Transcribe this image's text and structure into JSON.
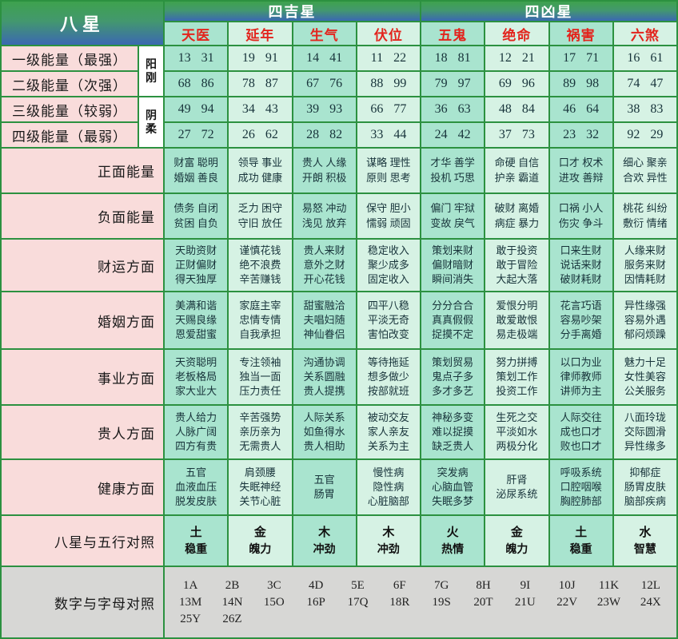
{
  "header": {
    "left_title": "八星",
    "good_group": "四吉星",
    "bad_group": "四凶星",
    "stars": [
      "天医",
      "延年",
      "生气",
      "伏位",
      "五鬼",
      "绝命",
      "祸害",
      "六煞"
    ]
  },
  "yin_yang": [
    "阳刚",
    "阴柔"
  ],
  "energy_rows": [
    {
      "label": "一级能量（最强）",
      "values": [
        "13 31",
        "19 91",
        "14 41",
        "11 22",
        "18 81",
        "12 21",
        "17 71",
        "16 61"
      ]
    },
    {
      "label": "二级能量（次强）",
      "values": [
        "68 86",
        "78 87",
        "67 76",
        "88 99",
        "79 97",
        "69 96",
        "89 98",
        "74 47"
      ]
    },
    {
      "label": "三级能量（较弱）",
      "values": [
        "49 94",
        "34 43",
        "39 93",
        "66 77",
        "36 63",
        "48 84",
        "46 64",
        "38 83"
      ]
    },
    {
      "label": "四级能量（最弱）",
      "values": [
        "27 72",
        "26 62",
        "28 82",
        "33 44",
        "24 42",
        "37 73",
        "23 32",
        "92 29"
      ]
    }
  ],
  "aspect_rows": [
    {
      "label": "正面能量",
      "cells": [
        [
          "财富 聪明",
          "婚姻 善良"
        ],
        [
          "领导 事业",
          "成功 健康"
        ],
        [
          "贵人 人缘",
          "开朗 积极"
        ],
        [
          "谋略 理性",
          "原则 思考"
        ],
        [
          "才华 善学",
          "投机 巧思"
        ],
        [
          "命硬 自信",
          "护亲 霸道"
        ],
        [
          "口才 权术",
          "进攻 善辩"
        ],
        [
          "细心 聚亲",
          "合欢 异性"
        ]
      ]
    },
    {
      "label": "负面能量",
      "cells": [
        [
          "债务 自闭",
          "贫困 自负"
        ],
        [
          "乏力 困守",
          "守旧 放任"
        ],
        [
          "易怒 冲动",
          "浅见 放弃"
        ],
        [
          "保守 胆小",
          "懦弱 顽固"
        ],
        [
          "偏门 牢狱",
          "变故 戾气"
        ],
        [
          "破财 离婚",
          "病症 暴力"
        ],
        [
          "口祸 小人",
          "伤灾 争斗"
        ],
        [
          "桃花 纠纷",
          "敷衍 情绪"
        ]
      ]
    },
    {
      "label": "财运方面",
      "cells": [
        [
          "天助资财",
          "正财偏财",
          "得天独厚"
        ],
        [
          "谨慎花钱",
          "绝不浪费",
          "辛苦赚钱"
        ],
        [
          "贵人来财",
          "意外之财",
          "开心花钱"
        ],
        [
          "稳定收入",
          "聚少成多",
          "固定收入"
        ],
        [
          "策划来财",
          "偏财暗财",
          "瞬间消失"
        ],
        [
          "敢于投资",
          "敢于冒险",
          "大起大落"
        ],
        [
          "口来生财",
          "说话来财",
          "破财耗财"
        ],
        [
          "人缘来财",
          "服务来财",
          "因情耗财"
        ]
      ]
    },
    {
      "label": "婚姻方面",
      "cells": [
        [
          "美满和谐",
          "天赐良缘",
          "恩爱甜蜜"
        ],
        [
          "家庭主宰",
          "忠情专情",
          "自我承担"
        ],
        [
          "甜蜜融洽",
          "夫唱妇随",
          "神仙眷侣"
        ],
        [
          "四平八稳",
          "平淡无奇",
          "害怕改变"
        ],
        [
          "分分合合",
          "真真假假",
          "捉摸不定"
        ],
        [
          "爱恨分明",
          "敢爱敢恨",
          "易走极端"
        ],
        [
          "花言巧语",
          "容易吵架",
          "分手离婚"
        ],
        [
          "异性缘强",
          "容易外遇",
          "郁闷烦躁"
        ]
      ]
    },
    {
      "label": "事业方面",
      "cells": [
        [
          "天资聪明",
          "老板格局",
          "家大业大"
        ],
        [
          "专注领袖",
          "独当一面",
          "压力责任"
        ],
        [
          "沟通协调",
          "关系圆融",
          "贵人提携"
        ],
        [
          "等待拖延",
          "想多做少",
          "按部就班"
        ],
        [
          "策划贸易",
          "鬼点子多",
          "多才多艺"
        ],
        [
          "努力拼搏",
          "策划工作",
          "投资工作"
        ],
        [
          "以口为业",
          "律师教师",
          "讲师为主"
        ],
        [
          "魅力十足",
          "女性美容",
          "公关服务"
        ]
      ]
    },
    {
      "label": "贵人方面",
      "cells": [
        [
          "贵人给力",
          "人脉广阔",
          "四方有贵"
        ],
        [
          "辛苦强势",
          "亲历亲为",
          "无需贵人"
        ],
        [
          "人际关系",
          "如鱼得水",
          "贵人相助"
        ],
        [
          "被动交友",
          "家人亲友",
          "关系为主"
        ],
        [
          "神秘多变",
          "难以捉摸",
          "缺乏贵人"
        ],
        [
          "生死之交",
          "平淡如水",
          "两极分化"
        ],
        [
          "人际交往",
          "成也口才",
          "败也口才"
        ],
        [
          "八面玲珑",
          "交际圆滑",
          "异性缘多"
        ]
      ]
    },
    {
      "label": "健康方面",
      "cells": [
        [
          "五官",
          "血液血压",
          "脱发皮肤"
        ],
        [
          "肩颈腰",
          "失眠神经",
          "关节心脏"
        ],
        [
          "五官",
          "肠胃"
        ],
        [
          "慢性病",
          "隐性病",
          "心脏脑部"
        ],
        [
          "突发病",
          "心脑血管",
          "失眠多梦"
        ],
        [
          "肝肾",
          "泌尿系统"
        ],
        [
          "呼吸系统",
          "口腔咽喉",
          "胸腔肺部"
        ],
        [
          "抑郁症",
          "肠胃皮肤",
          "脑部疾病"
        ]
      ]
    }
  ],
  "five_elements": {
    "label": "八星与五行对照",
    "cells": [
      [
        "土",
        "稳重"
      ],
      [
        "金",
        "魄力"
      ],
      [
        "木",
        "冲劲"
      ],
      [
        "木",
        "冲劲"
      ],
      [
        "火",
        "热情"
      ],
      [
        "金",
        "魄力"
      ],
      [
        "土",
        "稳重"
      ],
      [
        "水",
        "智慧"
      ]
    ]
  },
  "number_letter": {
    "label": "数字与字母对照",
    "lines": [
      [
        "1A",
        "2B",
        "3C",
        "4D",
        "5E",
        "6F",
        "7G",
        "8H",
        "9I",
        "10J",
        "11K",
        "12L"
      ],
      [
        "13M",
        "14N",
        "15O",
        "16P",
        "17Q",
        "18R",
        "19S",
        "20T",
        "21U",
        "22V",
        "23W",
        "24X"
      ],
      [
        "25Y",
        "26Z"
      ]
    ]
  }
}
